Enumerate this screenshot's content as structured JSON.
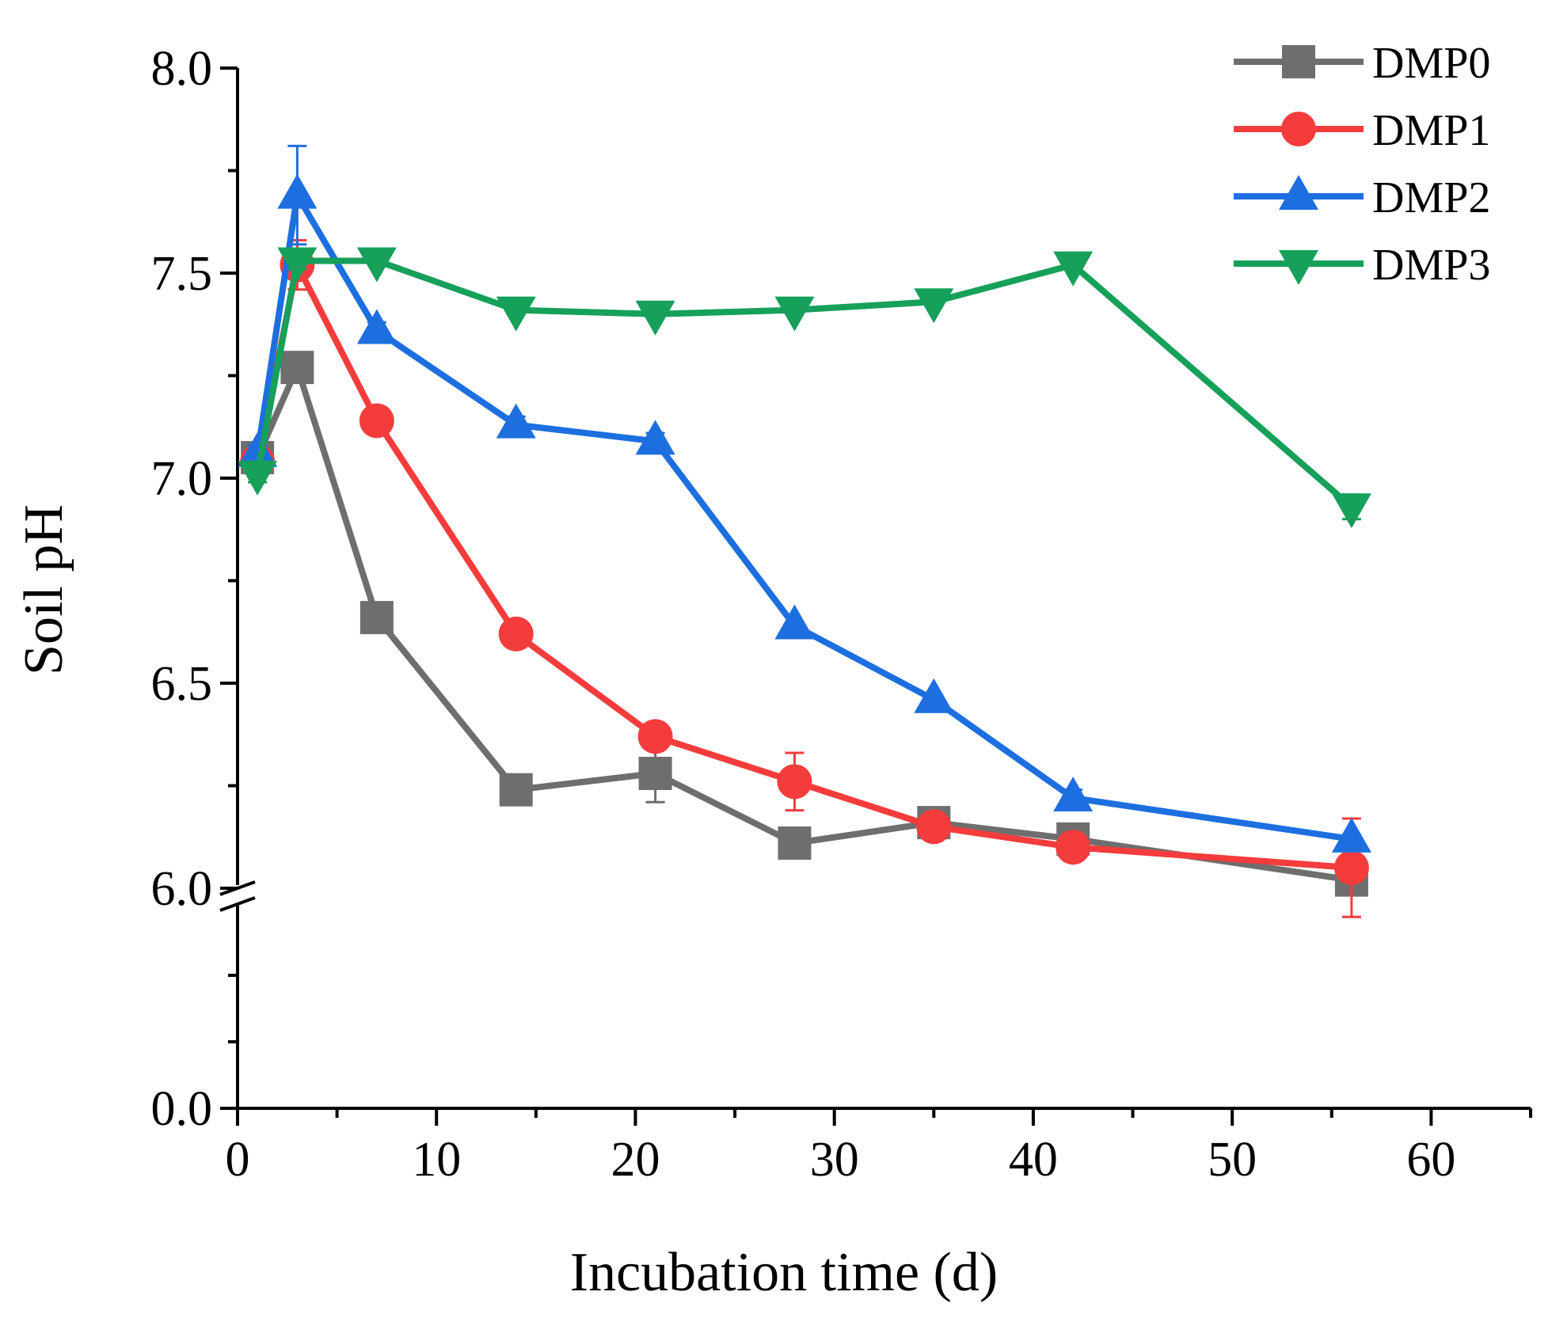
{
  "chart_data": {
    "type": "line",
    "title": "",
    "xlabel": "Incubation time (d)",
    "ylabel": "Soil pH",
    "xlim": [
      0,
      65
    ],
    "ylim_upper": [
      6.0,
      8.0
    ],
    "ylim_lower": [
      0.0,
      6.0
    ],
    "axis_break": "y between 0.0 and 6.0",
    "x_ticks": [
      "0",
      "10",
      "20",
      "30",
      "40",
      "50",
      "60"
    ],
    "y_ticks": [
      "0.0",
      "6.0",
      "6.5",
      "7.0",
      "7.5",
      "8.0"
    ],
    "legend_position": "top-right",
    "series": [
      {
        "name": "DMP0",
        "color": "#6e6e6e",
        "marker": "square",
        "x": [
          1,
          3,
          7,
          14,
          21,
          28,
          35,
          42,
          56
        ],
        "y": [
          7.05,
          7.27,
          6.66,
          6.24,
          6.28,
          6.11,
          6.16,
          6.12,
          6.02
        ],
        "err": [
          0.02,
          0.02,
          0.02,
          0.01,
          0.07,
          0.01,
          0.01,
          0.01,
          0.02
        ]
      },
      {
        "name": "DMP1",
        "color": "#f53c3c",
        "marker": "circle",
        "x": [
          1,
          3,
          7,
          14,
          21,
          28,
          35,
          42,
          56
        ],
        "y": [
          7.04,
          7.52,
          7.14,
          6.62,
          6.37,
          6.26,
          6.15,
          6.1,
          6.05
        ],
        "err": [
          0.01,
          0.06,
          0.01,
          0.01,
          0.01,
          0.07,
          0.01,
          0.01,
          0.12
        ]
      },
      {
        "name": "DMP2",
        "color": "#1d6fe0",
        "marker": "triangle-up",
        "x": [
          1,
          3,
          7,
          14,
          21,
          28,
          35,
          42,
          56
        ],
        "y": [
          7.06,
          7.69,
          7.36,
          7.13,
          7.09,
          6.64,
          6.46,
          6.22,
          6.12
        ],
        "err": [
          0.02,
          0.12,
          0.02,
          0.02,
          0.02,
          0.01,
          0.01,
          0.02,
          0.01
        ]
      },
      {
        "name": "DMP3",
        "color": "#16a05a",
        "marker": "triangle-down",
        "x": [
          1,
          3,
          7,
          14,
          21,
          28,
          35,
          42,
          56
        ],
        "y": [
          7.01,
          7.53,
          7.53,
          7.41,
          7.4,
          7.41,
          7.43,
          7.52,
          6.93
        ],
        "err": [
          0.02,
          0.02,
          0.01,
          0.01,
          0.01,
          0.01,
          0.01,
          0.01,
          0.03
        ]
      }
    ]
  }
}
